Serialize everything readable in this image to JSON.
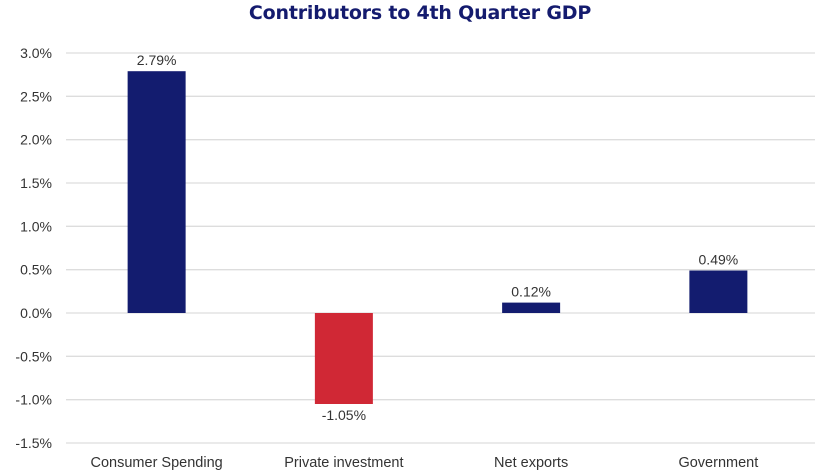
{
  "chart_data": {
    "type": "bar",
    "title": "Contributors to 4th Quarter GDP",
    "xlabel": "",
    "ylabel": "",
    "categories": [
      "Consumer Spending",
      "Private investment",
      "Net exports",
      "Government"
    ],
    "values": [
      2.79,
      -1.05,
      0.12,
      0.49
    ],
    "data_labels": [
      "2.79%",
      "-1.05%",
      "0.12%",
      "0.49%"
    ],
    "ylim": [
      -1.5,
      3.0
    ],
    "yticks": [
      3.0,
      2.5,
      2.0,
      1.5,
      1.0,
      0.5,
      0.0,
      -0.5,
      -1.0,
      -1.5
    ],
    "ytick_labels": [
      "3.0%",
      "2.5%",
      "2.0%",
      "1.5%",
      "1.0%",
      "0.5%",
      "0.0%",
      "-0.5%",
      "-1.0%",
      "-1.5%"
    ],
    "grid": true,
    "legend": "none",
    "colors": {
      "positive": "#131c6f",
      "negative": "#d02835",
      "grid": "#dddddd",
      "title": "#141b6e"
    }
  }
}
